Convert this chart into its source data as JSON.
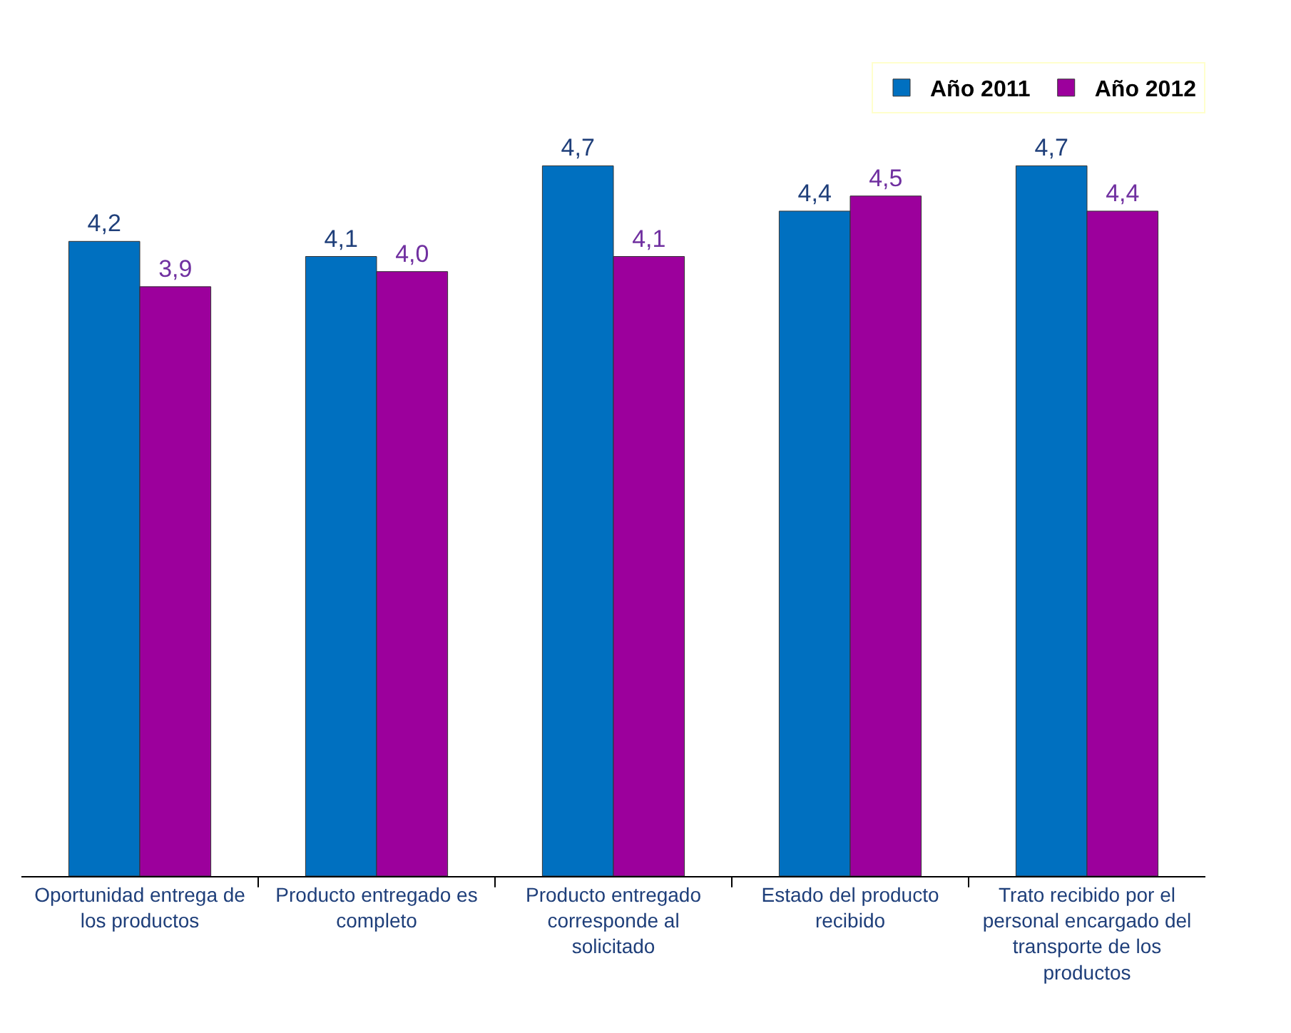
{
  "chart_data": {
    "type": "bar",
    "categories": [
      "Oportunidad entrega de los productos",
      "Producto entregado es completo",
      "Producto entregado corresponde al solicitado",
      "Estado del producto recibido",
      "Trato recibido por el personal encargado del transporte de los productos"
    ],
    "series": [
      {
        "name": "Año 2011",
        "color": "#0070c0",
        "values": [
          4.2,
          4.1,
          4.7,
          4.4,
          4.7
        ],
        "value_labels": [
          "4,2",
          "4,1",
          "4,7",
          "4,4",
          "4,7"
        ]
      },
      {
        "name": "Año 2012",
        "color": "#9c009c",
        "values": [
          3.9,
          4.0,
          4.1,
          4.5,
          4.4
        ],
        "value_labels": [
          "3,9",
          "4,0",
          "4,1",
          "4,5",
          "4,4"
        ]
      }
    ],
    "legend": "top right",
    "grid": false
  }
}
